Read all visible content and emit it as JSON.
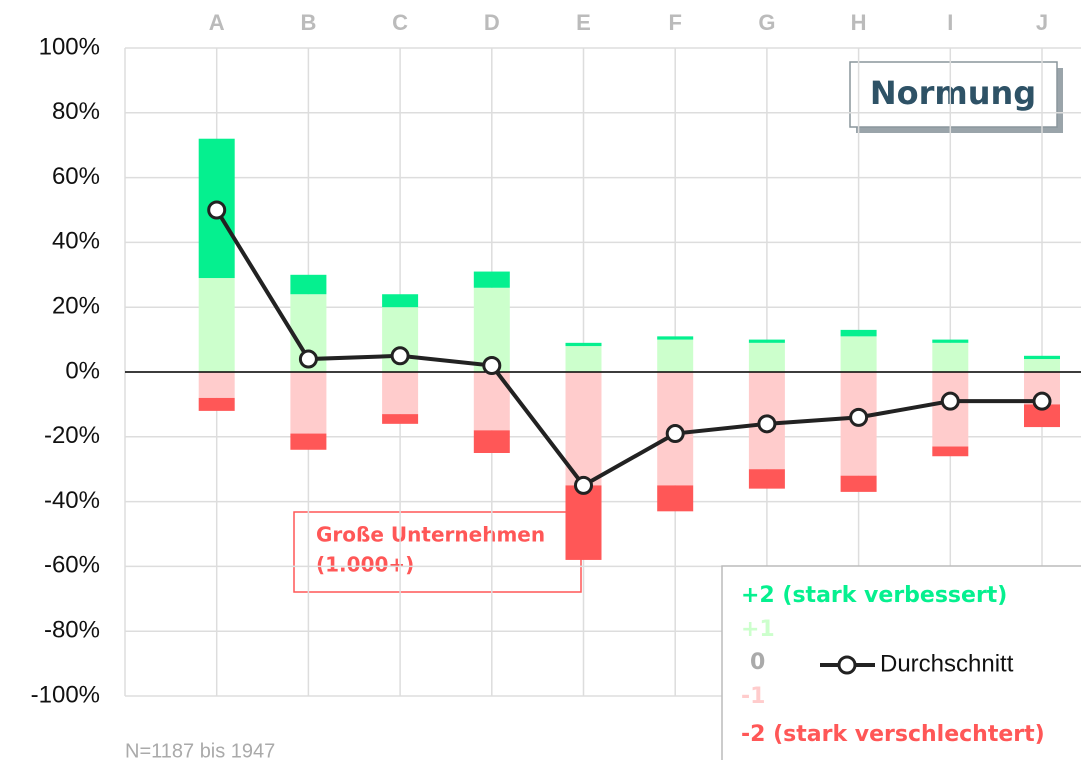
{
  "chart_data": {
    "type": "diverging-stacked-bar-line",
    "categories": [
      "A",
      "B",
      "C",
      "D",
      "E",
      "F",
      "G",
      "H",
      "I",
      "J"
    ],
    "series": [
      {
        "name": "+2 (stark verbessert)",
        "color": "#05f08f",
        "values": [
          43,
          6,
          4,
          5,
          1,
          1,
          1,
          2,
          1,
          1
        ]
      },
      {
        "name": "+1",
        "color": "#ccffcc",
        "values": [
          29,
          24,
          20,
          26,
          8,
          10,
          9,
          11,
          9,
          4
        ]
      },
      {
        "name": "-1",
        "color": "#ffcccc",
        "values": [
          -8,
          -19,
          -13,
          -18,
          -35,
          -35,
          -30,
          -32,
          -23,
          -10
        ]
      },
      {
        "name": "-2 (stark verschlechtert)",
        "color": "#ff5757",
        "values": [
          -4,
          -5,
          -3,
          -7,
          -23,
          -8,
          -6,
          -5,
          -3,
          -7
        ]
      }
    ],
    "neutral_legend": {
      "name": "0",
      "color": "#aaaaaa"
    },
    "line": {
      "name": "Durchschnitt",
      "color": "#222222",
      "values": [
        50,
        4,
        5,
        2,
        -35,
        -19,
        -16,
        -14,
        -9,
        -9
      ]
    },
    "ylim": [
      -100,
      100
    ],
    "yticks": [
      {
        "value": 100,
        "label": "100%"
      },
      {
        "value": 80,
        "label": "80%"
      },
      {
        "value": 60,
        "label": "60%"
      },
      {
        "value": 40,
        "label": "40%"
      },
      {
        "value": 20,
        "label": "20%"
      },
      {
        "value": 0,
        "label": "0%"
      },
      {
        "value": -20,
        "label": "-20%"
      },
      {
        "value": -40,
        "label": "-40%"
      },
      {
        "value": -60,
        "label": "-60%"
      },
      {
        "value": -80,
        "label": "-80%"
      },
      {
        "value": -100,
        "label": "-100%"
      }
    ],
    "grid": true,
    "title": "Normung",
    "annotation": [
      "Große Unternehmen",
      "(1.000+)"
    ],
    "footnote": "N=1187 bis 1947"
  }
}
